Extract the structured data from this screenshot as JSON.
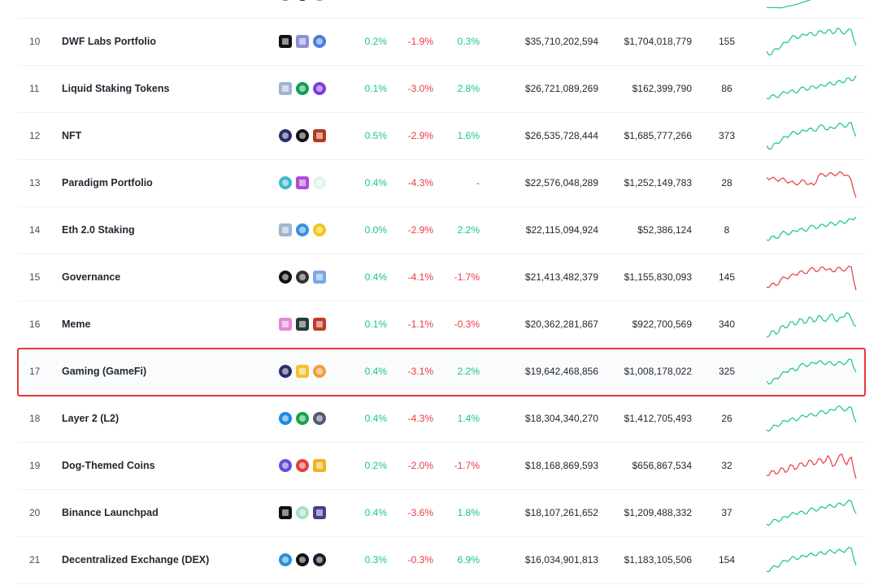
{
  "rows": [
    {
      "rank": "",
      "name": "",
      "coins": [
        "#6b6fd4",
        "#111111",
        "#888888"
      ],
      "coin_shapes": [
        "circle",
        "circle",
        "circle"
      ],
      "pct_1h": "",
      "pct_1h_dir": "up",
      "pct_24h": "",
      "pct_24h_dir": "down",
      "pct_7d": "",
      "pct_7d_dir": "up",
      "market_cap": "",
      "volume_24h": "",
      "num_coins": "",
      "trend": "up",
      "sparkline": [
        0.1,
        0.2,
        0.4,
        0.6
      ]
    },
    {
      "rank": "10",
      "name": "DWF Labs Portfolio",
      "coins": [
        "#111111",
        "#8d8fd8",
        "#4a7be0"
      ],
      "coin_shapes": [
        "square",
        "square",
        "circle"
      ],
      "pct_1h": "0.2%",
      "pct_1h_dir": "up",
      "pct_24h": "-1.9%",
      "pct_24h_dir": "down",
      "pct_7d": "0.3%",
      "pct_7d_dir": "up",
      "market_cap": "$35,710,202,594",
      "volume_24h": "$1,704,018,779",
      "num_coins": "155",
      "trend": "up",
      "sparkline": [
        0.2,
        0.1,
        0.3,
        0.35,
        0.5,
        0.6,
        0.7,
        0.65,
        0.75,
        0.8,
        0.72,
        0.85,
        0.8,
        0.9,
        0.78,
        0.95,
        0.8,
        0.85,
        0.9,
        0.4
      ]
    },
    {
      "rank": "11",
      "name": "Liquid Staking Tokens",
      "coins": [
        "#9fb6cf",
        "#0e9e58",
        "#7c3ae6"
      ],
      "coin_shapes": [
        "square",
        "circle",
        "circle"
      ],
      "pct_1h": "0.1%",
      "pct_1h_dir": "up",
      "pct_24h": "-3.0%",
      "pct_24h_dir": "down",
      "pct_7d": "2.8%",
      "pct_7d_dir": "up",
      "market_cap": "$26,721,089,269",
      "volume_24h": "$162,399,790",
      "num_coins": "86",
      "trend": "up",
      "sparkline": [
        0.2,
        0.3,
        0.25,
        0.35,
        0.4,
        0.45,
        0.4,
        0.5,
        0.55,
        0.5,
        0.6,
        0.58,
        0.62,
        0.7,
        0.65,
        0.75,
        0.72,
        0.85,
        0.78,
        0.95
      ]
    },
    {
      "rank": "12",
      "name": "NFT",
      "coins": [
        "#2b2d6e",
        "#111111",
        "#b33a1d"
      ],
      "coin_shapes": [
        "circle",
        "circle",
        "square"
      ],
      "pct_1h": "0.5%",
      "pct_1h_dir": "up",
      "pct_24h": "-2.9%",
      "pct_24h_dir": "down",
      "pct_7d": "1.6%",
      "pct_7d_dir": "up",
      "market_cap": "$26,535,728,444",
      "volume_24h": "$1,685,777,266",
      "num_coins": "373",
      "trend": "up",
      "sparkline": [
        0.2,
        0.1,
        0.3,
        0.35,
        0.5,
        0.55,
        0.65,
        0.6,
        0.7,
        0.75,
        0.68,
        0.8,
        0.85,
        0.72,
        0.78,
        0.85,
        0.9,
        0.82,
        0.95,
        0.5
      ]
    },
    {
      "rank": "13",
      "name": "Paradigm Portfolio",
      "coins": [
        "#3fb8c9",
        "#b14bd8",
        "#e0f5ec"
      ],
      "coin_shapes": [
        "circle",
        "square",
        "circle"
      ],
      "pct_1h": "0.4%",
      "pct_1h_dir": "up",
      "pct_24h": "-4.3%",
      "pct_24h_dir": "down",
      "pct_7d": "-",
      "pct_7d_dir": "neutral",
      "market_cap": "$22,576,048,289",
      "volume_24h": "$1,252,149,783",
      "num_coins": "28",
      "trend": "down",
      "sparkline": [
        0.7,
        0.68,
        0.62,
        0.65,
        0.6,
        0.55,
        0.5,
        0.52,
        0.6,
        0.48,
        0.45,
        0.75,
        0.8,
        0.78,
        0.82,
        0.8,
        0.85,
        0.78,
        0.6,
        0.05
      ]
    },
    {
      "rank": "14",
      "name": "Eth 2.0 Staking",
      "coins": [
        "#9fb6cf",
        "#3a8fe0",
        "#f5c518"
      ],
      "coin_shapes": [
        "square",
        "circle",
        "circle"
      ],
      "pct_1h": "0.0%",
      "pct_1h_dir": "up",
      "pct_24h": "-2.9%",
      "pct_24h_dir": "down",
      "pct_7d": "2.2%",
      "pct_7d_dir": "up",
      "market_cap": "$22,115,094,924",
      "volume_24h": "$52,386,124",
      "num_coins": "8",
      "trend": "up",
      "sparkline": [
        0.2,
        0.3,
        0.25,
        0.4,
        0.45,
        0.4,
        0.5,
        0.55,
        0.5,
        0.6,
        0.65,
        0.6,
        0.7,
        0.68,
        0.75,
        0.72,
        0.8,
        0.78,
        0.88,
        0.95
      ]
    },
    {
      "rank": "15",
      "name": "Governance",
      "coins": [
        "#111111",
        "#333333",
        "#7aa7e6"
      ],
      "coin_shapes": [
        "circle",
        "circle",
        "square"
      ],
      "pct_1h": "0.4%",
      "pct_1h_dir": "up",
      "pct_24h": "-4.1%",
      "pct_24h_dir": "down",
      "pct_7d": "-1.7%",
      "pct_7d_dir": "down",
      "market_cap": "$21,413,482,379",
      "volume_24h": "$1,155,830,093",
      "num_coins": "145",
      "trend": "down",
      "sparkline": [
        0.2,
        0.3,
        0.25,
        0.45,
        0.5,
        0.55,
        0.6,
        0.7,
        0.65,
        0.75,
        0.8,
        0.72,
        0.85,
        0.78,
        0.7,
        0.82,
        0.75,
        0.8,
        0.85,
        0.1
      ]
    },
    {
      "rank": "16",
      "name": "Meme",
      "coins": [
        "#e58bd6",
        "#2a3b3a",
        "#c0392b"
      ],
      "coin_shapes": [
        "square",
        "square",
        "square"
      ],
      "pct_1h": "0.1%",
      "pct_1h_dir": "up",
      "pct_24h": "-1.1%",
      "pct_24h_dir": "down",
      "pct_7d": "-0.3%",
      "pct_7d_dir": "down",
      "market_cap": "$20,362,281,867",
      "volume_24h": "$922,700,569",
      "num_coins": "340",
      "trend": "up",
      "sparkline": [
        0.1,
        0.3,
        0.2,
        0.45,
        0.4,
        0.6,
        0.5,
        0.7,
        0.55,
        0.75,
        0.6,
        0.8,
        0.65,
        0.7,
        0.85,
        0.6,
        0.75,
        0.9,
        0.7,
        0.45
      ]
    },
    {
      "rank": "17",
      "name": "Gaming (GameFi)",
      "coins": [
        "#2b2d6e",
        "#f2c12e",
        "#f39c3d"
      ],
      "coin_shapes": [
        "circle",
        "square",
        "circle"
      ],
      "pct_1h": "0.4%",
      "pct_1h_dir": "up",
      "pct_24h": "-3.1%",
      "pct_24h_dir": "down",
      "pct_7d": "2.2%",
      "pct_7d_dir": "up",
      "market_cap": "$19,642,468,856",
      "volume_24h": "$1,008,178,022",
      "num_coins": "325",
      "trend": "up",
      "sparkline": [
        0.2,
        0.15,
        0.3,
        0.4,
        0.5,
        0.6,
        0.55,
        0.7,
        0.75,
        0.72,
        0.8,
        0.85,
        0.78,
        0.82,
        0.75,
        0.8,
        0.78,
        0.82,
        0.9,
        0.5
      ]
    },
    {
      "rank": "18",
      "name": "Layer 2 (L2)",
      "coins": [
        "#1e88e5",
        "#16a34a",
        "#555a6e"
      ],
      "coin_shapes": [
        "circle",
        "circle",
        "circle"
      ],
      "pct_1h": "0.4%",
      "pct_1h_dir": "up",
      "pct_24h": "-4.3%",
      "pct_24h_dir": "down",
      "pct_7d": "1.4%",
      "pct_7d_dir": "up",
      "market_cap": "$18,304,340,270",
      "volume_24h": "$1,412,705,493",
      "num_coins": "26",
      "trend": "up",
      "sparkline": [
        0.15,
        0.2,
        0.3,
        0.35,
        0.45,
        0.5,
        0.48,
        0.55,
        0.6,
        0.65,
        0.62,
        0.7,
        0.75,
        0.72,
        0.8,
        0.9,
        0.85,
        0.8,
        0.88,
        0.4
      ]
    },
    {
      "rank": "19",
      "name": "Dog-Themed Coins",
      "coins": [
        "#6b4bd8",
        "#e23d3d",
        "#f2b21e"
      ],
      "coin_shapes": [
        "circle",
        "circle",
        "square"
      ],
      "pct_1h": "0.2%",
      "pct_1h_dir": "up",
      "pct_24h": "-2.0%",
      "pct_24h_dir": "down",
      "pct_7d": "-1.7%",
      "pct_7d_dir": "down",
      "market_cap": "$18,168,869,593",
      "volume_24h": "$656,867,534",
      "num_coins": "32",
      "trend": "down",
      "sparkline": [
        0.2,
        0.35,
        0.25,
        0.45,
        0.3,
        0.55,
        0.4,
        0.6,
        0.5,
        0.7,
        0.55,
        0.75,
        0.6,
        0.85,
        0.5,
        0.7,
        0.9,
        0.55,
        0.8,
        0.1
      ]
    },
    {
      "rank": "20",
      "name": "Binance Launchpad",
      "coins": [
        "#111111",
        "#a7e0c6",
        "#4a3f8f"
      ],
      "coin_shapes": [
        "square",
        "circle",
        "square"
      ],
      "pct_1h": "0.4%",
      "pct_1h_dir": "up",
      "pct_24h": "-3.6%",
      "pct_24h_dir": "down",
      "pct_7d": "1.8%",
      "pct_7d_dir": "up",
      "market_cap": "$18,107,261,652",
      "volume_24h": "$1,209,488,332",
      "num_coins": "37",
      "trend": "up",
      "sparkline": [
        0.15,
        0.2,
        0.3,
        0.28,
        0.4,
        0.45,
        0.5,
        0.55,
        0.5,
        0.6,
        0.65,
        0.62,
        0.7,
        0.75,
        0.72,
        0.8,
        0.78,
        0.85,
        0.9,
        0.5
      ]
    },
    {
      "rank": "21",
      "name": "Decentralized Exchange (DEX)",
      "coins": [
        "#2b8fd6",
        "#111111",
        "#1a1a2e"
      ],
      "coin_shapes": [
        "circle",
        "circle",
        "circle"
      ],
      "pct_1h": "0.3%",
      "pct_1h_dir": "up",
      "pct_24h": "-0.3%",
      "pct_24h_dir": "down",
      "pct_7d": "6.9%",
      "pct_7d_dir": "up",
      "market_cap": "$16,034,901,813",
      "volume_24h": "$1,183,105,506",
      "num_coins": "154",
      "trend": "up",
      "sparkline": [
        0.15,
        0.25,
        0.3,
        0.4,
        0.5,
        0.55,
        0.6,
        0.58,
        0.65,
        0.7,
        0.68,
        0.75,
        0.72,
        0.8,
        0.78,
        0.82,
        0.8,
        0.85,
        0.9,
        0.35
      ]
    }
  ],
  "highlighted_row_rank": "17",
  "colors": {
    "up": "#16c784",
    "down": "#ea3943",
    "neutral": "#58667e",
    "highlight_border": "#e53935"
  }
}
